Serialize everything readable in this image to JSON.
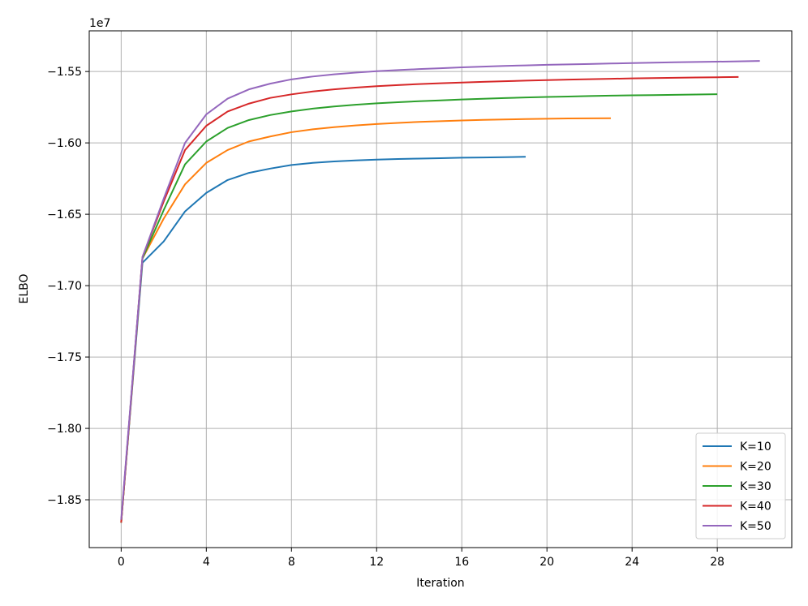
{
  "chart_data": {
    "type": "line",
    "xlabel": "Iteration",
    "ylabel": "ELBO",
    "y_offset_label": "1e7",
    "xlim": [
      -1.5,
      31.5
    ],
    "ylim": [
      -1.8835,
      -1.5215
    ],
    "x_ticks": [
      0,
      4,
      8,
      12,
      16,
      20,
      24,
      28
    ],
    "y_ticks": [
      -1.85,
      -1.8,
      -1.75,
      -1.7,
      -1.65,
      -1.6,
      -1.55
    ],
    "y_tick_labels": [
      "−1.85",
      "−1.80",
      "−1.75",
      "−1.70",
      "−1.65",
      "−1.60",
      "−1.55"
    ],
    "grid": true,
    "legend_position": "lower right",
    "series": [
      {
        "name": "K=10",
        "color": "#1f77b4",
        "x": [
          0,
          1,
          2,
          3,
          4,
          5,
          6,
          7,
          8,
          9,
          10,
          11,
          12,
          13,
          14,
          15,
          16,
          17,
          18,
          19
        ],
        "y": [
          -1.866,
          -1.684,
          -1.669,
          -1.648,
          -1.635,
          -1.626,
          -1.621,
          -1.618,
          -1.6155,
          -1.614,
          -1.613,
          -1.6123,
          -1.6117,
          -1.6113,
          -1.611,
          -1.6107,
          -1.6104,
          -1.6102,
          -1.61,
          -1.6097
        ]
      },
      {
        "name": "K=20",
        "color": "#ff7f0e",
        "x": [
          0,
          1,
          2,
          3,
          4,
          5,
          6,
          7,
          8,
          9,
          10,
          11,
          12,
          13,
          14,
          15,
          16,
          17,
          18,
          19,
          20,
          21,
          22,
          23
        ],
        "y": [
          -1.866,
          -1.681,
          -1.653,
          -1.629,
          -1.614,
          -1.605,
          -1.599,
          -1.5955,
          -1.5925,
          -1.5905,
          -1.589,
          -1.5878,
          -1.5868,
          -1.586,
          -1.5853,
          -1.5848,
          -1.5843,
          -1.5839,
          -1.5836,
          -1.5833,
          -1.5831,
          -1.5829,
          -1.5828,
          -1.5827
        ]
      },
      {
        "name": "K=30",
        "color": "#2ca02c",
        "x": [
          0,
          1,
          2,
          3,
          4,
          5,
          6,
          7,
          8,
          9,
          10,
          11,
          12,
          13,
          14,
          15,
          16,
          17,
          18,
          19,
          20,
          21,
          22,
          23,
          24,
          25,
          26,
          27,
          28
        ],
        "y": [
          -1.866,
          -1.681,
          -1.647,
          -1.615,
          -1.599,
          -1.5895,
          -1.584,
          -1.5805,
          -1.578,
          -1.576,
          -1.5745,
          -1.5733,
          -1.5723,
          -1.5715,
          -1.5708,
          -1.5702,
          -1.5696,
          -1.5691,
          -1.5686,
          -1.5682,
          -1.5678,
          -1.5675,
          -1.5672,
          -1.5669,
          -1.5667,
          -1.5665,
          -1.5663,
          -1.5661,
          -1.5659
        ]
      },
      {
        "name": "K=40",
        "color": "#d62728",
        "x": [
          0,
          1,
          2,
          3,
          4,
          5,
          6,
          7,
          8,
          9,
          10,
          11,
          12,
          13,
          14,
          15,
          16,
          17,
          18,
          19,
          20,
          21,
          22,
          23,
          24,
          25,
          26,
          27,
          28,
          29
        ],
        "y": [
          -1.866,
          -1.68,
          -1.641,
          -1.605,
          -1.588,
          -1.578,
          -1.5725,
          -1.5685,
          -1.566,
          -1.564,
          -1.5625,
          -1.5613,
          -1.5603,
          -1.5595,
          -1.5588,
          -1.5582,
          -1.5577,
          -1.5572,
          -1.5568,
          -1.5564,
          -1.556,
          -1.5557,
          -1.5554,
          -1.5551,
          -1.5548,
          -1.5546,
          -1.5544,
          -1.5542,
          -1.554,
          -1.5538
        ]
      },
      {
        "name": "K=50",
        "color": "#9467bd",
        "x": [
          0,
          1,
          2,
          3,
          4,
          5,
          6,
          7,
          8,
          9,
          10,
          11,
          12,
          13,
          14,
          15,
          16,
          17,
          18,
          19,
          20,
          21,
          22,
          23,
          24,
          25,
          26,
          27,
          28,
          29,
          30
        ],
        "y": [
          -1.864,
          -1.68,
          -1.639,
          -1.6,
          -1.58,
          -1.569,
          -1.5625,
          -1.5585,
          -1.5555,
          -1.5535,
          -1.552,
          -1.5508,
          -1.5498,
          -1.549,
          -1.5483,
          -1.5477,
          -1.5471,
          -1.5466,
          -1.5461,
          -1.5457,
          -1.5453,
          -1.545,
          -1.5447,
          -1.5444,
          -1.5441,
          -1.5438,
          -1.5435,
          -1.5433,
          -1.5431,
          -1.5429,
          -1.5426
        ]
      }
    ]
  }
}
